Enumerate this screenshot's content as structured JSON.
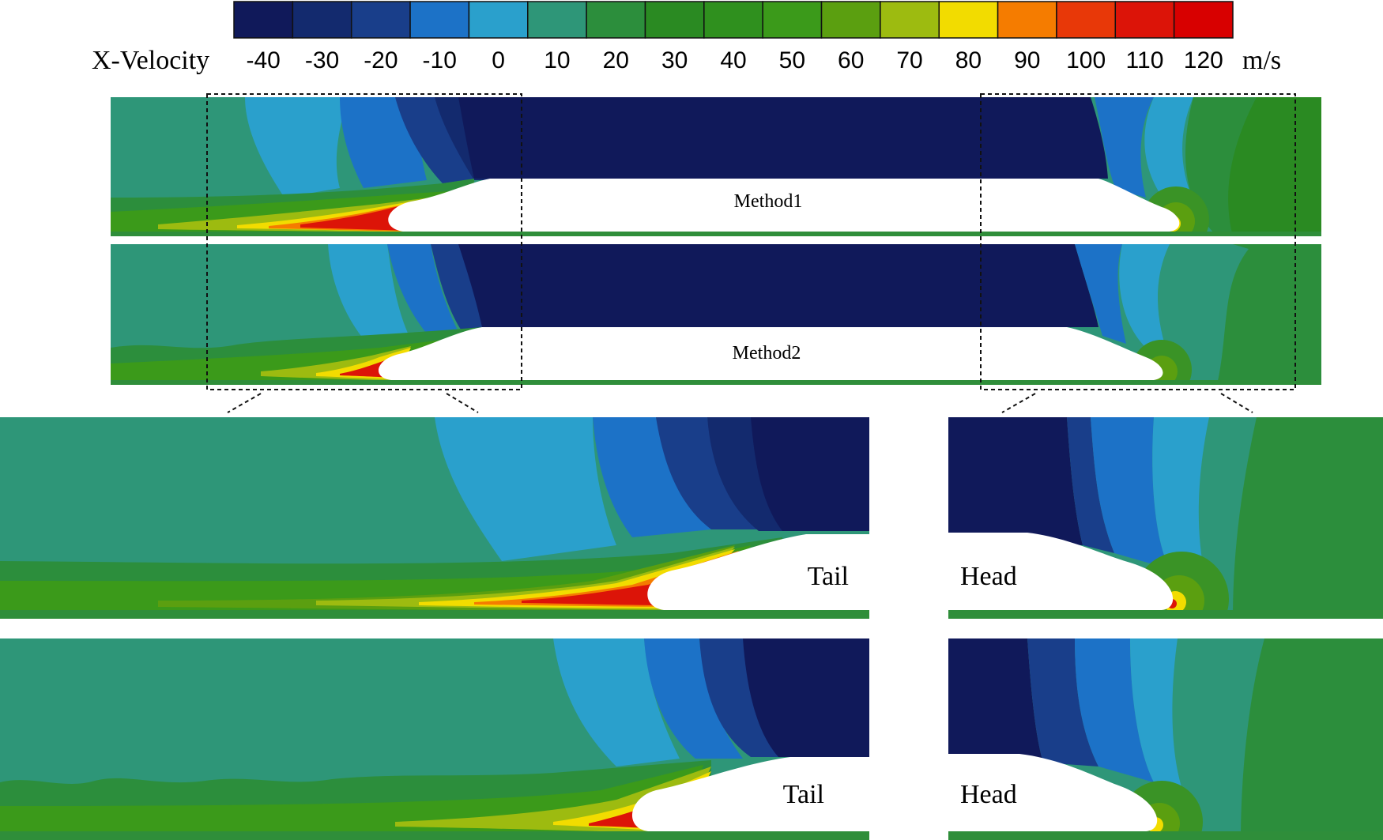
{
  "legend": {
    "title": "X-Velocity",
    "unit": "m/s",
    "ticks": [
      "-40",
      "-30",
      "-20",
      "-10",
      "0",
      "10",
      "20",
      "30",
      "40",
      "50",
      "60",
      "70",
      "80",
      "90",
      "100",
      "110",
      "120"
    ],
    "colors": [
      "#10195a",
      "#132a6e",
      "#193e8a",
      "#1c72c7",
      "#2aa0cc",
      "#2e9678",
      "#2c8e3c",
      "#2a8a22",
      "#2f901e",
      "#3b9a1a",
      "#5b9f10",
      "#9dbb10",
      "#f2dc00",
      "#f57c00",
      "#e83808",
      "#dc1408",
      "#d80000"
    ]
  },
  "main_panels": [
    {
      "label": "Method1"
    },
    {
      "label": "Method2"
    }
  ],
  "zoom_panels": {
    "tail_label": "Tail",
    "head_label": "Head"
  },
  "palette": {
    "ambient": "#2e9678",
    "roof": "#10195a",
    "ground": "#2f8e3a",
    "wake_hot": "#e2200a",
    "wake_warm": "#f28a08",
    "wake_yellow": "#f0d800",
    "wake_lime": "#8fb810",
    "stagnation": "#3a9326"
  }
}
